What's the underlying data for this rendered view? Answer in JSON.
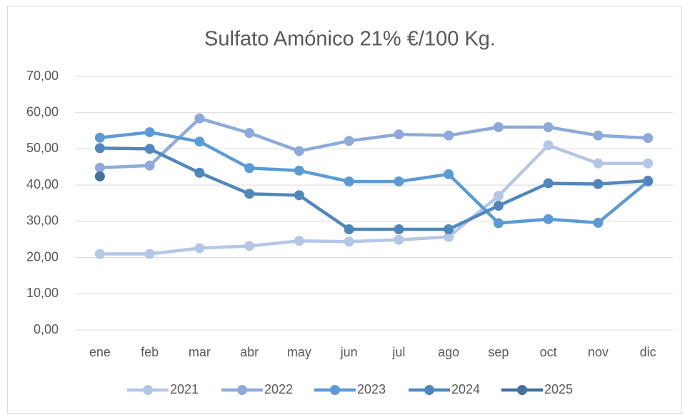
{
  "chart_data": {
    "type": "line",
    "title": "Sulfato Amónico 21% €/100 Kg.",
    "categories": [
      "ene",
      "feb",
      "mar",
      "abr",
      "may",
      "jun",
      "jul",
      "ago",
      "sep",
      "oct",
      "nov",
      "dic"
    ],
    "series": [
      {
        "name": "2021",
        "color": "#b4c7e7",
        "values": [
          21,
          21,
          22.6,
          23.2,
          24.6,
          24.4,
          24.9,
          25.7,
          37,
          51,
          46,
          46
        ]
      },
      {
        "name": "2022",
        "color": "#8eaadb",
        "values": [
          44.8,
          45.4,
          58.4,
          54.4,
          49.4,
          52.2,
          54,
          53.7,
          56,
          56,
          53.7,
          53
        ]
      },
      {
        "name": "2023",
        "color": "#5b9bd5",
        "values": [
          53.1,
          54.6,
          52,
          44.7,
          44,
          41,
          41,
          43,
          29.5,
          30.6,
          29.6,
          41
        ]
      },
      {
        "name": "2024",
        "color": "#4f87bd",
        "values": [
          50.2,
          50,
          43.4,
          37.6,
          37.2,
          27.8,
          27.8,
          27.8,
          34.3,
          40.5,
          40.3,
          41.2
        ]
      },
      {
        "name": "2025",
        "color": "#41719c",
        "values": [
          42.4,
          null,
          null,
          null,
          null,
          null,
          null,
          null,
          null,
          null,
          null,
          null
        ]
      }
    ],
    "ylim": [
      0,
      70
    ],
    "yticks": [
      {
        "value": 0,
        "label": "0,00"
      },
      {
        "value": 10,
        "label": "10,00"
      },
      {
        "value": 20,
        "label": "20,00"
      },
      {
        "value": 30,
        "label": "30,00"
      },
      {
        "value": 40,
        "label": "40,00"
      },
      {
        "value": 50,
        "label": "50,00"
      },
      {
        "value": 60,
        "label": "60,00"
      },
      {
        "value": 70,
        "label": "70,00"
      }
    ],
    "grid": true,
    "legend": "bottom"
  }
}
